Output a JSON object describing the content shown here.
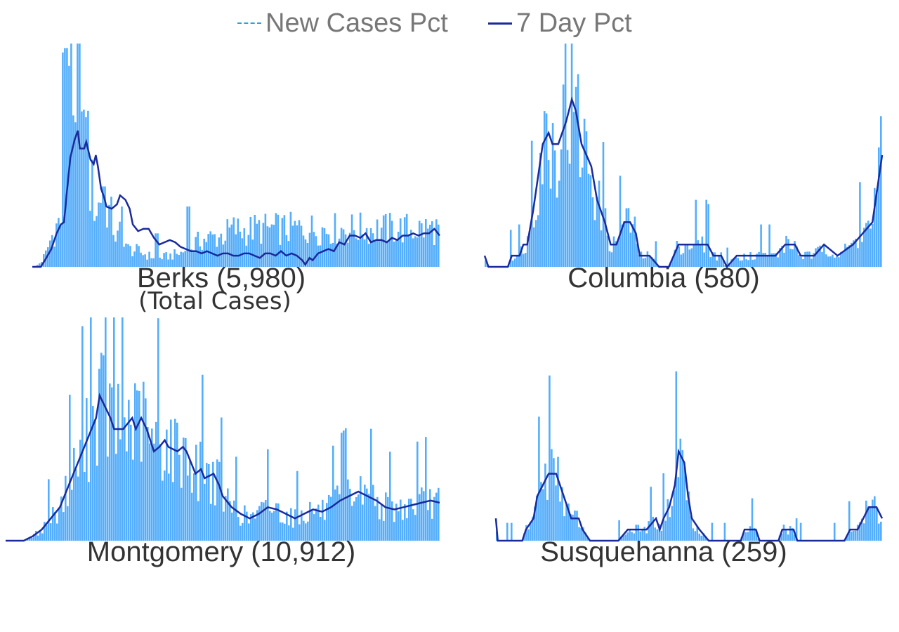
{
  "legend": {
    "new_cases_label": "New Cases Pct",
    "seven_day_label": "7 Day Pct"
  },
  "colors": {
    "bar": "#55aefb",
    "line": "#1a2a9c",
    "legend_dashed": "#29a3d9",
    "title_text": "#333333",
    "legend_text": "#777777"
  },
  "chart_data": [
    {
      "type": "bar",
      "title": "Berks (5,980)",
      "subtitle": "(Total Cases)",
      "series": [
        {
          "name": "New Cases Pct",
          "type": "bar",
          "peaks": [
            [
              0,
              0
            ],
            [
              4,
              0.5
            ],
            [
              8,
              2
            ],
            [
              13,
              6
            ],
            [
              18,
              13
            ],
            [
              22,
              17
            ],
            [
              25,
              20
            ],
            [
              30,
              22
            ],
            [
              35,
              50
            ],
            [
              37,
              95
            ],
            [
              39,
              55
            ],
            [
              42,
              45
            ],
            [
              45,
              100
            ],
            [
              47,
              60
            ],
            [
              50,
              45
            ],
            [
              52,
              65
            ],
            [
              55,
              35
            ],
            [
              58,
              30
            ],
            [
              62,
              25
            ],
            [
              65,
              33
            ],
            [
              70,
              28
            ],
            [
              75,
              22
            ],
            [
              80,
              12
            ],
            [
              85,
              18
            ],
            [
              90,
              8
            ],
            [
              100,
              7
            ],
            [
              110,
              5
            ],
            [
              120,
              4
            ],
            [
              130,
              5
            ],
            [
              140,
              6
            ],
            [
              150,
              9
            ],
            [
              160,
              12
            ],
            [
              170,
              13
            ],
            [
              180,
              14
            ],
            [
              190,
              17
            ],
            [
              200,
              16
            ],
            [
              210,
              17
            ]
          ],
          "spikes": [
            [
              30,
              96
            ],
            [
              32,
              98
            ],
            [
              36,
              90
            ],
            [
              44,
              100
            ],
            [
              50,
              67
            ],
            [
              57,
              48
            ],
            [
              68,
              36
            ],
            [
              75,
              27
            ],
            [
              85,
              27
            ],
            [
              118,
              15
            ],
            [
              148,
              27
            ],
            [
              190,
              17
            ]
          ]
        },
        {
          "name": "7 Day Pct",
          "type": "line",
          "points": [
            [
              0,
              0
            ],
            [
              8,
              0
            ],
            [
              12,
              3
            ],
            [
              18,
              8
            ],
            [
              23,
              15
            ],
            [
              27,
              19
            ],
            [
              30,
              20
            ],
            [
              33,
              35
            ],
            [
              36,
              49
            ],
            [
              40,
              57
            ],
            [
              43,
              61
            ],
            [
              45,
              53
            ],
            [
              49,
              53
            ],
            [
              51,
              56
            ],
            [
              55,
              48
            ],
            [
              58,
              46
            ],
            [
              60,
              50
            ],
            [
              62,
              45
            ],
            [
              65,
              35
            ],
            [
              68,
              31
            ],
            [
              70,
              27
            ],
            [
              75,
              26
            ],
            [
              80,
              28
            ],
            [
              83,
              32
            ],
            [
              88,
              30
            ],
            [
              92,
              26
            ],
            [
              95,
              19
            ],
            [
              100,
              16
            ],
            [
              105,
              17
            ],
            [
              110,
              17
            ],
            [
              115,
              13
            ],
            [
              120,
              10
            ],
            [
              125,
              11
            ],
            [
              130,
              12
            ],
            [
              135,
              11
            ],
            [
              140,
              9
            ],
            [
              145,
              8
            ],
            [
              150,
              7
            ],
            [
              155,
              7
            ],
            [
              160,
              6
            ],
            [
              165,
              7
            ],
            [
              170,
              6
            ],
            [
              175,
              5
            ],
            [
              180,
              6
            ],
            [
              185,
              6
            ],
            [
              190,
              5
            ],
            [
              195,
              5
            ],
            [
              200,
              6
            ],
            [
              205,
              6
            ],
            [
              210,
              5
            ],
            [
              215,
              4
            ],
            [
              220,
              6
            ],
            [
              225,
              6
            ],
            [
              230,
              5
            ],
            [
              235,
              7
            ],
            [
              240,
              5
            ],
            [
              245,
              6
            ],
            [
              250,
              5
            ],
            [
              255,
              3
            ],
            [
              258,
              1
            ],
            [
              262,
              4
            ],
            [
              265,
              3
            ],
            [
              270,
              6
            ],
            [
              275,
              7
            ],
            [
              280,
              8
            ],
            [
              285,
              7
            ],
            [
              290,
              11
            ],
            [
              295,
              10
            ],
            [
              300,
              14
            ],
            [
              305,
              14
            ],
            [
              310,
              13
            ],
            [
              315,
              15
            ],
            [
              320,
              11
            ],
            [
              325,
              12
            ],
            [
              330,
              12
            ],
            [
              335,
              11
            ],
            [
              340,
              13
            ],
            [
              345,
              12
            ],
            [
              350,
              14
            ],
            [
              355,
              14
            ],
            [
              360,
              15
            ],
            [
              365,
              14
            ],
            [
              370,
              15
            ],
            [
              375,
              15
            ],
            [
              380,
              17
            ],
            [
              385,
              14
            ]
          ]
        }
      ]
    },
    {
      "type": "bar",
      "title": "Columbia (580)",
      "series": [
        {
          "name": "New Cases Pct",
          "type": "bar"
        },
        {
          "name": "7 Day Pct",
          "type": "line",
          "points": [
            [
              0,
              5
            ],
            [
              2,
              0
            ],
            [
              12,
              0
            ],
            [
              14,
              5
            ],
            [
              18,
              5
            ],
            [
              20,
              10
            ],
            [
              22,
              10
            ],
            [
              25,
              25
            ],
            [
              30,
              55
            ],
            [
              33,
              60
            ],
            [
              35,
              55
            ],
            [
              38,
              55
            ],
            [
              42,
              65
            ],
            [
              45,
              75
            ],
            [
              47,
              70
            ],
            [
              50,
              55
            ],
            [
              55,
              45
            ],
            [
              58,
              30
            ],
            [
              62,
              20
            ],
            [
              65,
              10
            ],
            [
              68,
              10
            ],
            [
              70,
              15
            ],
            [
              72,
              20
            ],
            [
              75,
              20
            ],
            [
              78,
              15
            ],
            [
              80,
              5
            ],
            [
              85,
              5
            ],
            [
              90,
              0
            ],
            [
              95,
              0
            ],
            [
              100,
              10
            ],
            [
              110,
              10
            ],
            [
              115,
              10
            ],
            [
              118,
              5
            ],
            [
              122,
              5
            ],
            [
              125,
              0
            ],
            [
              130,
              5
            ],
            [
              150,
              5
            ],
            [
              155,
              10
            ],
            [
              160,
              10
            ],
            [
              163,
              5
            ],
            [
              170,
              5
            ],
            [
              175,
              10
            ],
            [
              182,
              5
            ],
            [
              190,
              10
            ],
            [
              200,
              20
            ],
            [
              205,
              50
            ]
          ]
        }
      ]
    },
    {
      "type": "bar",
      "title": "Montgomery (10,912)",
      "series": [
        {
          "name": "New Cases Pct",
          "type": "bar"
        },
        {
          "name": "7 Day Pct",
          "type": "line",
          "points": [
            [
              0,
              0
            ],
            [
              10,
              0
            ],
            [
              15,
              2
            ],
            [
              20,
              5
            ],
            [
              25,
              10
            ],
            [
              30,
              15
            ],
            [
              35,
              25
            ],
            [
              40,
              35
            ],
            [
              45,
              45
            ],
            [
              50,
              55
            ],
            [
              52,
              65
            ],
            [
              55,
              60
            ],
            [
              58,
              55
            ],
            [
              60,
              50
            ],
            [
              65,
              50
            ],
            [
              70,
              55
            ],
            [
              72,
              50
            ],
            [
              75,
              55
            ],
            [
              78,
              50
            ],
            [
              82,
              40
            ],
            [
              85,
              42
            ],
            [
              88,
              45
            ],
            [
              90,
              42
            ],
            [
              95,
              40
            ],
            [
              98,
              42
            ],
            [
              100,
              40
            ],
            [
              105,
              30
            ],
            [
              108,
              32
            ],
            [
              110,
              28
            ],
            [
              115,
              30
            ],
            [
              118,
              25
            ],
            [
              120,
              20
            ],
            [
              125,
              15
            ],
            [
              130,
              12
            ],
            [
              135,
              10
            ],
            [
              140,
              12
            ],
            [
              145,
              15
            ],
            [
              150,
              14
            ],
            [
              155,
              12
            ],
            [
              160,
              10
            ],
            [
              165,
              12
            ],
            [
              170,
              14
            ],
            [
              175,
              13
            ],
            [
              180,
              15
            ],
            [
              185,
              18
            ],
            [
              190,
              20
            ],
            [
              195,
              22
            ],
            [
              200,
              20
            ],
            [
              205,
              18
            ],
            [
              210,
              15
            ],
            [
              215,
              14
            ],
            [
              220,
              15
            ],
            [
              225,
              16
            ],
            [
              230,
              17
            ],
            [
              235,
              18
            ],
            [
              240,
              17
            ]
          ]
        }
      ]
    },
    {
      "type": "bar",
      "title": "Susquehanna (259)",
      "series": [
        {
          "name": "New Cases Pct",
          "type": "bar"
        },
        {
          "name": "7 Day Pct",
          "type": "line",
          "points": [
            [
              0,
              10
            ],
            [
              1,
              0
            ],
            [
              14,
              0
            ],
            [
              16,
              5
            ],
            [
              20,
              10
            ],
            [
              22,
              20
            ],
            [
              25,
              25
            ],
            [
              28,
              30
            ],
            [
              32,
              30
            ],
            [
              34,
              25
            ],
            [
              36,
              20
            ],
            [
              40,
              10
            ],
            [
              44,
              10
            ],
            [
              46,
              5
            ],
            [
              50,
              0
            ],
            [
              65,
              0
            ],
            [
              70,
              5
            ],
            [
              80,
              5
            ],
            [
              85,
              10
            ],
            [
              87,
              5
            ],
            [
              89,
              10
            ],
            [
              92,
              15
            ],
            [
              95,
              25
            ],
            [
              97,
              40
            ],
            [
              100,
              35
            ],
            [
              102,
              20
            ],
            [
              104,
              10
            ],
            [
              108,
              5
            ],
            [
              113,
              0
            ],
            [
              130,
              0
            ],
            [
              132,
              5
            ],
            [
              138,
              5
            ],
            [
              140,
              0
            ],
            [
              150,
              0
            ],
            [
              152,
              5
            ],
            [
              158,
              5
            ],
            [
              160,
              0
            ],
            [
              185,
              0
            ],
            [
              188,
              5
            ],
            [
              192,
              5
            ],
            [
              195,
              10
            ],
            [
              198,
              15
            ],
            [
              202,
              15
            ],
            [
              205,
              10
            ]
          ]
        }
      ]
    }
  ]
}
